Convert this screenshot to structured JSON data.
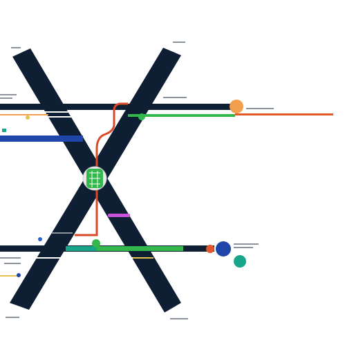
{
  "title": "",
  "colors": {
    "background": "#ffffff",
    "x_band": "#0f1f33",
    "connector_red": "#d94a2a",
    "connector_green": "#33b84c",
    "blue_bar": "#1d46a8",
    "teal": "#19a58a",
    "orange": "#f2a04d",
    "magenta": "#c653d9",
    "yellow": "#e5c24a",
    "gray_text": "#8b939c"
  },
  "center_node": {
    "icon": "grid-node-icon",
    "fill": "#33b84c",
    "ring": "#e9e9e9"
  },
  "side_markers": [
    {
      "name": "orange-marker",
      "icon": "circle",
      "fill": "#f2a04d"
    },
    {
      "name": "blue-marker",
      "icon": "circle",
      "fill": "#1d46a8"
    },
    {
      "name": "teal-marker",
      "icon": "circle",
      "fill": "#19a58a"
    },
    {
      "name": "red-dot",
      "icon": "circle",
      "fill": "#e0582c"
    },
    {
      "name": "green-dot",
      "icon": "circle",
      "fill": "#33b84c"
    }
  ]
}
